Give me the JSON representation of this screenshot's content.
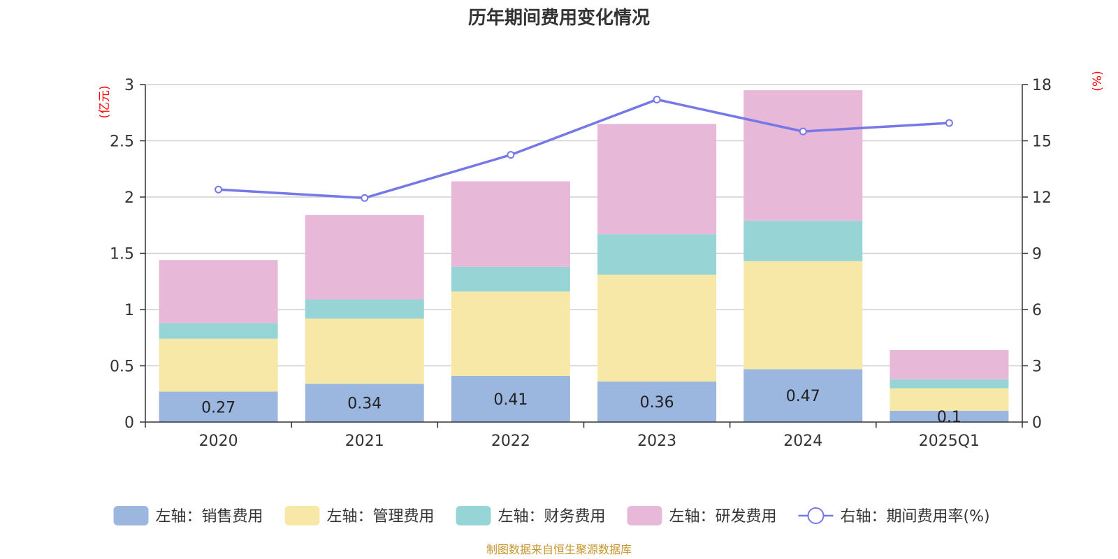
{
  "chart_data": {
    "type": "bar",
    "stacked": true,
    "title": "历年期间费用变化情况",
    "categories": [
      "2020",
      "2021",
      "2022",
      "2023",
      "2024",
      "2025Q1"
    ],
    "left_axis": {
      "unit": "(亿元)",
      "ylim": [
        0,
        3
      ],
      "ticks": [
        "0",
        "0.5",
        "1",
        "1.5",
        "2",
        "2.5",
        "3"
      ]
    },
    "right_axis": {
      "unit": "(%)",
      "ylim": [
        0,
        18
      ],
      "ticks": [
        "0",
        "3",
        "6",
        "9",
        "12",
        "15",
        "18"
      ]
    },
    "series": [
      {
        "name": "左轴：销售费用",
        "axis": "left",
        "color": "#9bb7e0",
        "values": [
          0.27,
          0.34,
          0.41,
          0.36,
          0.47,
          0.1
        ],
        "labels": [
          "0.27",
          "0.34",
          "0.41",
          "0.36",
          "0.47",
          "0.1"
        ]
      },
      {
        "name": "左轴：管理费用",
        "axis": "left",
        "color": "#f7e8a7",
        "values": [
          0.47,
          0.58,
          0.75,
          0.95,
          0.96,
          0.2
        ]
      },
      {
        "name": "左轴：财务费用",
        "axis": "left",
        "color": "#97d4d5",
        "values": [
          0.14,
          0.17,
          0.22,
          0.36,
          0.36,
          0.08
        ]
      },
      {
        "name": "左轴：研发费用",
        "axis": "left",
        "color": "#e7b8d8",
        "values": [
          0.56,
          0.75,
          0.76,
          0.98,
          1.16,
          0.26
        ]
      },
      {
        "name": "右轴：期间费用率(%)",
        "axis": "right",
        "type": "line",
        "color": "#7778e8",
        "values": [
          12.4,
          11.95,
          14.25,
          17.2,
          15.5,
          15.95
        ]
      }
    ],
    "source": "制图数据来自恒生聚源数据库"
  }
}
